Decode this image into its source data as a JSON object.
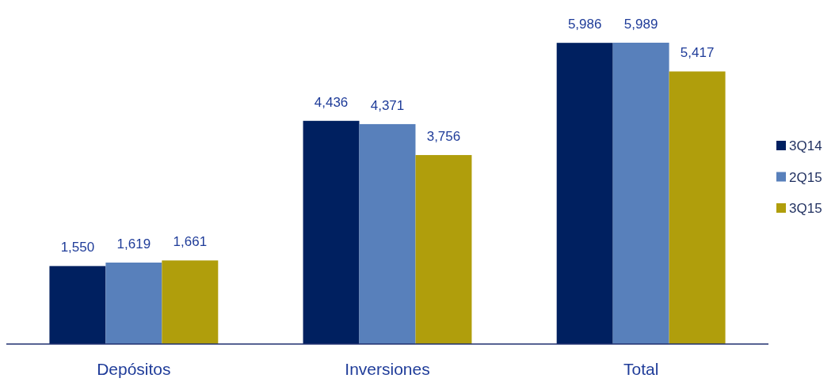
{
  "chart_data": {
    "type": "bar",
    "categories": [
      "Depósitos",
      "Inversiones",
      "Total"
    ],
    "series": [
      {
        "name": "3Q14",
        "color": "#002060",
        "values": [
          1550,
          4436,
          5986
        ],
        "value_labels": [
          "1,550",
          "4,436",
          "5,986"
        ]
      },
      {
        "name": "2Q15",
        "color": "#5880bb",
        "values": [
          1619,
          4371,
          5989
        ],
        "value_labels": [
          "1,619",
          "4,371",
          "5,989"
        ]
      },
      {
        "name": "3Q15",
        "color": "#b09e0c",
        "values": [
          1661,
          3756,
          5417
        ],
        "value_labels": [
          "1,661",
          "3,756",
          "5,417"
        ]
      }
    ],
    "legend": "right"
  }
}
